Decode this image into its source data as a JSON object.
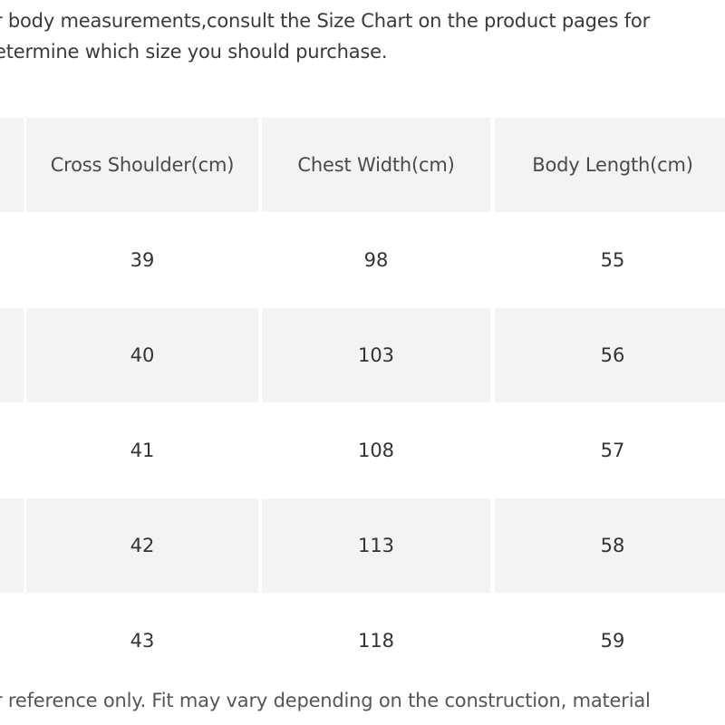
{
  "intro": {
    "line1": "r body measurements,consult the Size Chart on the product pages for",
    "line2": "etermine which size you should purchase."
  },
  "size_table": {
    "headers": [
      "",
      "Cross Shoulder(cm)",
      "Chest Width(cm)",
      "Body Length(cm)"
    ],
    "rows": [
      {
        "size": "",
        "cross_shoulder": "39",
        "chest_width": "98",
        "body_length": "55"
      },
      {
        "size": "",
        "cross_shoulder": "40",
        "chest_width": "103",
        "body_length": "56"
      },
      {
        "size": "",
        "cross_shoulder": "41",
        "chest_width": "108",
        "body_length": "57"
      },
      {
        "size": "",
        "cross_shoulder": "42",
        "chest_width": "113",
        "body_length": "58"
      },
      {
        "size": "",
        "cross_shoulder": "43",
        "chest_width": "118",
        "body_length": "59"
      }
    ]
  },
  "footnote": "r reference only. Fit may vary depending on the construction, material",
  "colors": {
    "shaded_row": "#f3f3f3",
    "text": "#333333",
    "background": "#ffffff"
  }
}
